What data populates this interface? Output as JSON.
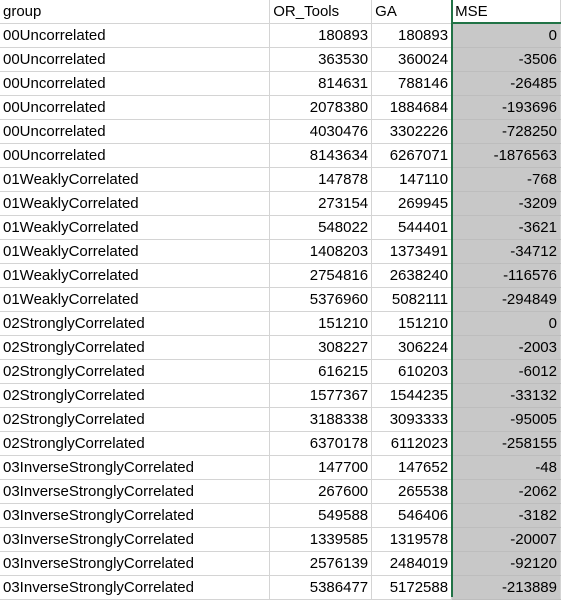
{
  "headers": [
    "group",
    "OR_Tools",
    "GA",
    "MSE"
  ],
  "rows": [
    {
      "group": "00Uncorrelated",
      "or_tools": "180893",
      "ga": "180893",
      "mse": "0"
    },
    {
      "group": "00Uncorrelated",
      "or_tools": "363530",
      "ga": "360024",
      "mse": "-3506"
    },
    {
      "group": "00Uncorrelated",
      "or_tools": "814631",
      "ga": "788146",
      "mse": "-26485"
    },
    {
      "group": "00Uncorrelated",
      "or_tools": "2078380",
      "ga": "1884684",
      "mse": "-193696"
    },
    {
      "group": "00Uncorrelated",
      "or_tools": "4030476",
      "ga": "3302226",
      "mse": "-728250"
    },
    {
      "group": "00Uncorrelated",
      "or_tools": "8143634",
      "ga": "6267071",
      "mse": "-1876563"
    },
    {
      "group": "01WeaklyCorrelated",
      "or_tools": "147878",
      "ga": "147110",
      "mse": "-768"
    },
    {
      "group": "01WeaklyCorrelated",
      "or_tools": "273154",
      "ga": "269945",
      "mse": "-3209"
    },
    {
      "group": "01WeaklyCorrelated",
      "or_tools": "548022",
      "ga": "544401",
      "mse": "-3621"
    },
    {
      "group": "01WeaklyCorrelated",
      "or_tools": "1408203",
      "ga": "1373491",
      "mse": "-34712"
    },
    {
      "group": "01WeaklyCorrelated",
      "or_tools": "2754816",
      "ga": "2638240",
      "mse": "-116576"
    },
    {
      "group": "01WeaklyCorrelated",
      "or_tools": "5376960",
      "ga": "5082111",
      "mse": "-294849"
    },
    {
      "group": "02StronglyCorrelated",
      "or_tools": "151210",
      "ga": "151210",
      "mse": "0"
    },
    {
      "group": "02StronglyCorrelated",
      "or_tools": "308227",
      "ga": "306224",
      "mse": "-2003"
    },
    {
      "group": "02StronglyCorrelated",
      "or_tools": "616215",
      "ga": "610203",
      "mse": "-6012"
    },
    {
      "group": "02StronglyCorrelated",
      "or_tools": "1577367",
      "ga": "1544235",
      "mse": "-33132"
    },
    {
      "group": "02StronglyCorrelated",
      "or_tools": "3188338",
      "ga": "3093333",
      "mse": "-95005"
    },
    {
      "group": "02StronglyCorrelated",
      "or_tools": "6370178",
      "ga": "6112023",
      "mse": "-258155"
    },
    {
      "group": "03InverseStronglyCorrelated",
      "or_tools": "147700",
      "ga": "147652",
      "mse": "-48"
    },
    {
      "group": "03InverseStronglyCorrelated",
      "or_tools": "267600",
      "ga": "265538",
      "mse": "-2062"
    },
    {
      "group": "03InverseStronglyCorrelated",
      "or_tools": "549588",
      "ga": "546406",
      "mse": "-3182"
    },
    {
      "group": "03InverseStronglyCorrelated",
      "or_tools": "1339585",
      "ga": "1319578",
      "mse": "-20007"
    },
    {
      "group": "03InverseStronglyCorrelated",
      "or_tools": "2576139",
      "ga": "2484019",
      "mse": "-92120"
    },
    {
      "group": "03InverseStronglyCorrelated",
      "or_tools": "5386477",
      "ga": "5172588",
      "mse": "-213889"
    }
  ],
  "colors": {
    "selection_border": "#217346",
    "selected_fill": "#c8c8c8",
    "gridline": "#d4d4d4"
  }
}
